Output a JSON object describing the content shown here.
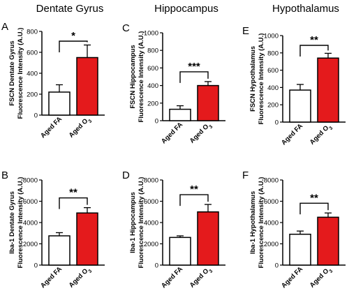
{
  "figure": {
    "column_titles": [
      "Dentate Gyrus",
      "Hippocampus",
      "Hypothalamus"
    ]
  },
  "colors": {
    "fa_bar": "#ffffff",
    "o3_bar": "#e41a1c",
    "stroke": "#000000"
  },
  "chart_data": [
    {
      "panel": "A",
      "type": "bar",
      "categories": [
        "Aged FA",
        "Aged O3"
      ],
      "values": [
        220,
        550
      ],
      "errors": [
        70,
        120
      ],
      "ylabel": [
        "FSCN Dentate Gyrus",
        "Fluorescence Intensity (A.U.)"
      ],
      "ylim": [
        0,
        800
      ],
      "yticks": [
        0,
        200,
        400,
        600,
        800
      ],
      "significance": "*"
    },
    {
      "panel": "C",
      "type": "bar",
      "categories": [
        "Aged FA",
        "Aged O3"
      ],
      "values": [
        130,
        400
      ],
      "errors": [
        40,
        45
      ],
      "ylabel": [
        "FSCN Hippocampus",
        "Fluorescence Intensity (A.U.)"
      ],
      "ylim": [
        0,
        1000
      ],
      "yticks": [
        0,
        200,
        400,
        600,
        800,
        1000
      ],
      "significance": "***"
    },
    {
      "panel": "E",
      "type": "bar",
      "categories": [
        "Aged FA",
        "Aged O3"
      ],
      "values": [
        370,
        740
      ],
      "errors": [
        65,
        55
      ],
      "ylabel": [
        "FSCN Hypothalamus",
        "Fluorescence Intensity (A.U.)"
      ],
      "ylim": [
        0,
        1000
      ],
      "yticks": [
        0,
        200,
        400,
        600,
        800,
        1000
      ],
      "significance": "**"
    },
    {
      "panel": "B",
      "type": "bar",
      "categories": [
        "Aged FA",
        "Aged O3"
      ],
      "values": [
        2750,
        4900
      ],
      "errors": [
        300,
        500
      ],
      "ylabel": [
        "Iba-1 Dentate Gyrus",
        "Fluorescence Intensity (A.U.)"
      ],
      "ylim": [
        0,
        8000
      ],
      "yticks": [
        0,
        2000,
        4000,
        6000,
        8000
      ],
      "significance": "**"
    },
    {
      "panel": "D",
      "type": "bar",
      "categories": [
        "Aged FA",
        "Aged O3"
      ],
      "values": [
        2600,
        5000
      ],
      "errors": [
        150,
        700
      ],
      "ylabel": [
        "Iba-1 Hippocampus",
        "Fluorescence Intensity (A.U.)"
      ],
      "ylim": [
        0,
        8000
      ],
      "yticks": [
        0,
        2000,
        4000,
        6000,
        8000
      ],
      "significance": "**"
    },
    {
      "panel": "F",
      "type": "bar",
      "categories": [
        "Aged FA",
        "Aged O3"
      ],
      "values": [
        2900,
        4500
      ],
      "errors": [
        300,
        400
      ],
      "ylabel": [
        "Iba-1 Hypothalamus",
        "Fluorescence Intensity (A.U.)"
      ],
      "ylim": [
        0,
        8000
      ],
      "yticks": [
        0,
        2000,
        4000,
        6000,
        8000
      ],
      "significance": "**"
    }
  ]
}
